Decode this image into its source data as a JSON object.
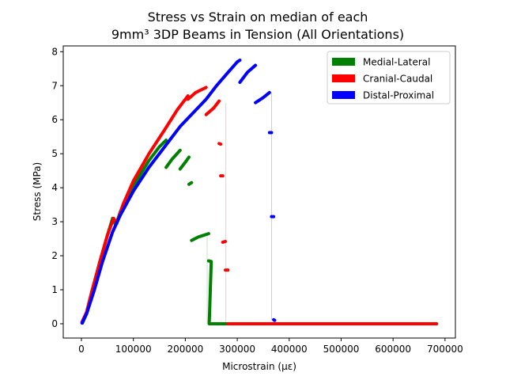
{
  "chart_data": {
    "type": "line",
    "title": [
      "Stress vs Strain on median of each",
      "9mm³ 3DP Beams in Tension (All Orientations)"
    ],
    "xlabel": "Microstrain (με)",
    "ylabel": "Stress (MPa)",
    "xlim": [
      -35000,
      720000
    ],
    "ylim": [
      -0.42,
      8.17
    ],
    "xticks": [
      0,
      100000,
      200000,
      300000,
      400000,
      500000,
      600000,
      700000
    ],
    "xtick_labels": [
      "0",
      "100000",
      "200000",
      "300000",
      "400000",
      "500000",
      "600000",
      "700000"
    ],
    "yticks": [
      0,
      1,
      2,
      3,
      4,
      5,
      6,
      7,
      8
    ],
    "ytick_labels": [
      "0",
      "1",
      "2",
      "3",
      "4",
      "5",
      "6",
      "7",
      "8"
    ],
    "grid": false,
    "legend_position": "top-right",
    "series": [
      {
        "name": "Medial-Lateral",
        "color": "#008000",
        "points": [
          [
            2000,
            0.02
          ],
          [
            10000,
            0.3
          ],
          [
            20000,
            0.9
          ],
          [
            35000,
            1.8
          ],
          [
            50000,
            2.6
          ],
          [
            60000,
            3.1
          ],
          [
            66000,
            2.9
          ],
          [
            75000,
            3.3
          ],
          [
            90000,
            3.8
          ],
          [
            110000,
            4.3
          ],
          [
            130000,
            4.8
          ],
          [
            150000,
            5.2
          ],
          [
            163000,
            5.4
          ],
          [
            163000,
            4.6
          ],
          [
            175000,
            4.85
          ],
          [
            190000,
            5.1
          ],
          [
            190000,
            4.55
          ],
          [
            200000,
            4.75
          ],
          [
            207000,
            4.9
          ],
          [
            207000,
            4.1
          ],
          [
            212000,
            4.15
          ],
          [
            212000,
            2.45
          ],
          [
            225000,
            2.55
          ],
          [
            245000,
            2.65
          ],
          [
            245000,
            1.85
          ],
          [
            250000,
            1.83
          ],
          [
            246000,
            0.0
          ],
          [
            300000,
            0.0
          ],
          [
            400000,
            0.0
          ],
          [
            500000,
            0.0
          ]
        ]
      },
      {
        "name": "Cranial-Caudal",
        "color": "#ff0000",
        "points": [
          [
            1000,
            0.05
          ],
          [
            10000,
            0.35
          ],
          [
            20000,
            0.95
          ],
          [
            35000,
            1.8
          ],
          [
            50000,
            2.6
          ],
          [
            62000,
            3.1
          ],
          [
            68000,
            2.95
          ],
          [
            80000,
            3.5
          ],
          [
            100000,
            4.2
          ],
          [
            130000,
            5.0
          ],
          [
            160000,
            5.7
          ],
          [
            185000,
            6.3
          ],
          [
            205000,
            6.7
          ],
          [
            205000,
            6.6
          ],
          [
            220000,
            6.8
          ],
          [
            240000,
            6.95
          ],
          [
            240000,
            6.15
          ],
          [
            255000,
            6.35
          ],
          [
            265000,
            6.55
          ],
          [
            265000,
            5.3
          ],
          [
            268000,
            5.28
          ],
          [
            268000,
            4.35
          ],
          [
            272000,
            4.35
          ],
          [
            272000,
            2.4
          ],
          [
            277000,
            2.42
          ],
          [
            277000,
            1.58
          ],
          [
            282000,
            1.58
          ],
          [
            282000,
            0.0
          ],
          [
            400000,
            0.0
          ],
          [
            500000,
            0.0
          ],
          [
            684000,
            0.0
          ]
        ]
      },
      {
        "name": "Distal-Proximal",
        "color": "#0000ff",
        "points": [
          [
            1000,
            0.02
          ],
          [
            10000,
            0.3
          ],
          [
            25000,
            1.0
          ],
          [
            40000,
            1.8
          ],
          [
            60000,
            2.7
          ],
          [
            75000,
            3.2
          ],
          [
            100000,
            3.9
          ],
          [
            130000,
            4.6
          ],
          [
            160000,
            5.2
          ],
          [
            190000,
            5.8
          ],
          [
            215000,
            6.2
          ],
          [
            240000,
            6.6
          ],
          [
            260000,
            7.0
          ],
          [
            280000,
            7.35
          ],
          [
            300000,
            7.7
          ],
          [
            305000,
            7.75
          ],
          [
            305000,
            7.1
          ],
          [
            320000,
            7.4
          ],
          [
            335000,
            7.6
          ],
          [
            335000,
            6.5
          ],
          [
            350000,
            6.65
          ],
          [
            362000,
            6.8
          ],
          [
            362000,
            5.62
          ],
          [
            366000,
            5.62
          ],
          [
            366000,
            3.15
          ],
          [
            370000,
            3.15
          ],
          [
            370000,
            0.12
          ],
          [
            372000,
            0.1
          ]
        ]
      }
    ],
    "drops": [
      {
        "series": "Medial-Lateral",
        "x": 242000,
        "from": 2.6,
        "to": 0.0
      },
      {
        "series": "Cranial-Caudal",
        "x": 278000,
        "from": 6.5,
        "to": 0.0
      },
      {
        "series": "Distal-Proximal",
        "x": 366000,
        "from": 6.8,
        "to": 0.1
      }
    ]
  }
}
